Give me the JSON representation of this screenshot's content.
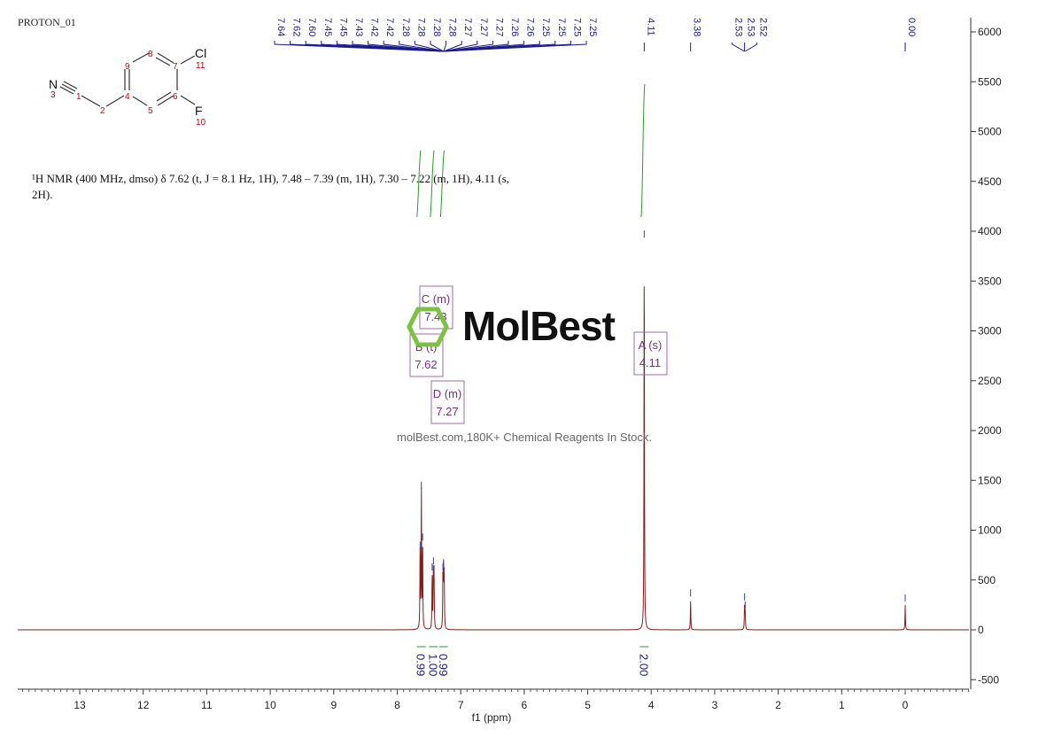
{
  "chart_data": {
    "type": "line",
    "title": "PROTON_01",
    "xlabel": "f1 (ppm)",
    "ylabel": "",
    "xlim": [
      14,
      -1
    ],
    "ylim": [
      -600,
      6150
    ],
    "x_ticks": [
      13,
      12,
      11,
      10,
      9,
      8,
      7,
      6,
      5,
      4,
      3,
      2,
      1,
      0
    ],
    "y_ticks": [
      -500,
      0,
      500,
      1000,
      1500,
      2000,
      2500,
      3000,
      3500,
      4000,
      4500,
      5000,
      5500,
      6000
    ],
    "grid": false,
    "line_color": "#8b1a1a",
    "peaks": [
      {
        "ppm": 7.64,
        "height": 780
      },
      {
        "ppm": 7.62,
        "height": 1380
      },
      {
        "ppm": 7.6,
        "height": 860
      },
      {
        "ppm": 7.45,
        "height": 560
      },
      {
        "ppm": 7.43,
        "height": 620
      },
      {
        "ppm": 7.42,
        "height": 540
      },
      {
        "ppm": 7.28,
        "height": 560
      },
      {
        "ppm": 7.27,
        "height": 580
      },
      {
        "ppm": 7.26,
        "height": 520
      },
      {
        "ppm": 4.11,
        "height": 3900
      },
      {
        "ppm": 3.38,
        "height": 300
      },
      {
        "ppm": 2.53,
        "height": 260
      },
      {
        "ppm": 2.52,
        "height": 180
      },
      {
        "ppm": 0.0,
        "height": 250
      }
    ],
    "peak_labels_group1": [
      "7.64",
      "7.62",
      "7.60",
      "7.45",
      "7.45",
      "7.43",
      "7.42",
      "7.42",
      "7.28",
      "7.28",
      "7.28",
      "7.28",
      "7.27",
      "7.27",
      "7.27",
      "7.26",
      "7.26",
      "7.25",
      "7.25",
      "7.25",
      "7.25"
    ],
    "peak_labels_single": [
      {
        "ppm": 4.11,
        "label": "4.11"
      },
      {
        "ppm": 3.38,
        "label": "3.38"
      },
      {
        "ppm": 2.53,
        "label": "2.53"
      },
      {
        "ppm": 2.53,
        "label": "2.53"
      },
      {
        "ppm": 2.52,
        "label": "2.52"
      },
      {
        "ppm": 0.0,
        "label": "0.00"
      }
    ],
    "integrals": [
      {
        "ppm": 7.62,
        "value": "0.99"
      },
      {
        "ppm": 7.43,
        "value": "1.00"
      },
      {
        "ppm": 7.27,
        "value": "0.99"
      },
      {
        "ppm": 4.11,
        "value": "2.00"
      }
    ],
    "multiplets": [
      {
        "letter": "C (m)",
        "shift": "7.43",
        "ppm": 7.43
      },
      {
        "letter": "B (t)",
        "shift": "7.62",
        "ppm": 7.62
      },
      {
        "letter": "D (m)",
        "shift": "7.27",
        "ppm": 7.27
      },
      {
        "letter": "A (s)",
        "shift": "4.11",
        "ppm": 4.11
      }
    ]
  },
  "description": "¹H NMR (400 MHz, dmso) δ 7.62 (t, J = 8.1 Hz, 1H), 7.48 – 7.39 (m, 1H), 7.30 – 7.22 (m, 1H), 4.11 (s, 2H).",
  "structure": {
    "atoms": [
      "N",
      "3",
      "1",
      "2",
      "4",
      "5",
      "6",
      "7",
      "8",
      "9",
      "Cl",
      "11",
      "F",
      "10"
    ]
  },
  "watermark": {
    "logo": "MolBest",
    "text": "molBest.com,180K+ Chemical Reagents In Stock."
  }
}
